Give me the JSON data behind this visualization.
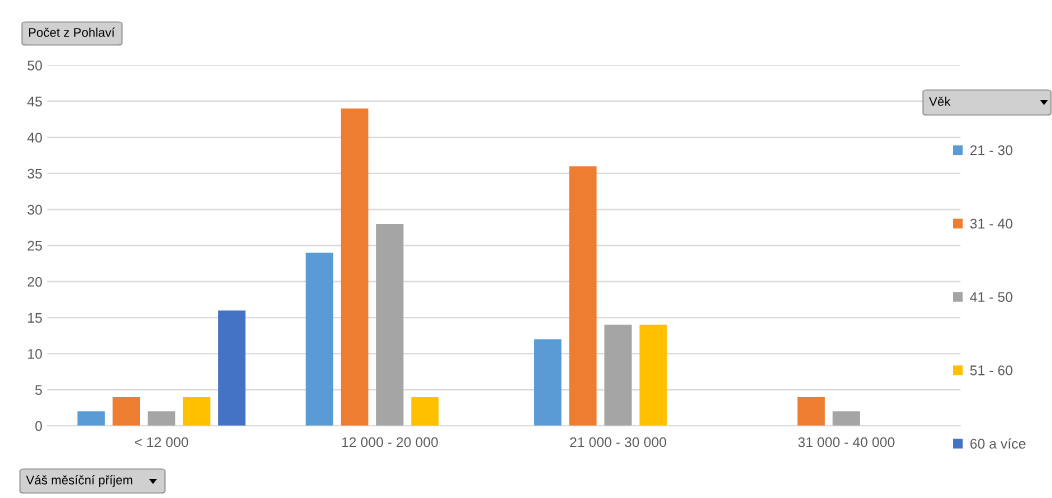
{
  "chart_data": {
    "type": "bar",
    "ylabel": "Počet z Pohlaví",
    "xlabel": "Váš měsíční příjem",
    "legend_title": "Věk",
    "categories": [
      "< 12 000",
      "12 000 - 20 000",
      "21 000 - 30 000",
      "31 000 - 40 000"
    ],
    "series": [
      {
        "name": "21 - 30",
        "color": "#5b9bd5",
        "values": [
          2,
          24,
          12,
          null
        ]
      },
      {
        "name": "31 - 40",
        "color": "#ed7d31",
        "values": [
          4,
          44,
          36,
          4
        ]
      },
      {
        "name": "41 - 50",
        "color": "#a5a5a5",
        "values": [
          2,
          28,
          14,
          2
        ]
      },
      {
        "name": "51 - 60",
        "color": "#ffc000",
        "values": [
          4,
          4,
          14,
          null
        ]
      },
      {
        "name": "60 a více",
        "color": "#4472c4",
        "values": [
          16,
          null,
          null,
          null
        ]
      }
    ],
    "ylim": [
      0,
      50
    ],
    "yticks": [
      0,
      5,
      10,
      15,
      20,
      25,
      30,
      35,
      40,
      45,
      50
    ],
    "grid": "y",
    "legend": "right"
  }
}
